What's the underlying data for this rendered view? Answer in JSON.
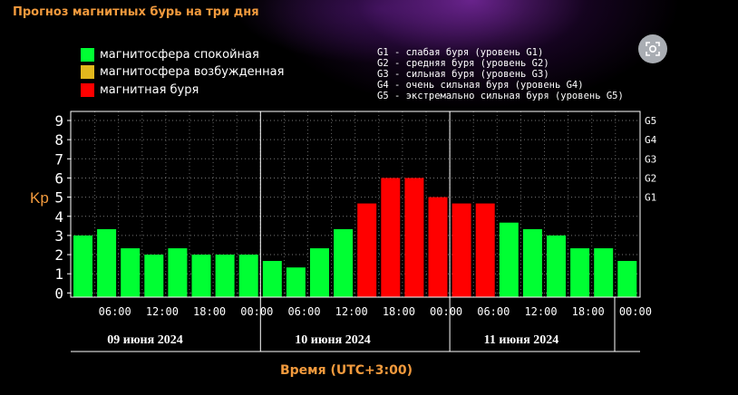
{
  "header": {
    "title": "Прогноз магнитных бурь на три дня"
  },
  "legend": [
    {
      "label": "магнитосфера спокойная",
      "color": "#00ff33"
    },
    {
      "label": "магнитосфера возбужденная",
      "color": "#e2b81d"
    },
    {
      "label": "магнитная буря",
      "color": "#ff0000"
    }
  ],
  "storm_levels": [
    "G1 - слабая буря (уровень G1)",
    "G2 - средняя буря (уровень G2)",
    "G3 - сильная буря (уровень G3)",
    "G4 - очень сильная буря (уровень G4)",
    "G5 - экстремально сильная буря (уровень G5)"
  ],
  "zoom_icon": "zoom-icon",
  "chart_data": {
    "type": "bar",
    "ylabel": "Kp",
    "ylim": [
      0,
      9
    ],
    "yticks": [
      "0",
      "1",
      "2",
      "3",
      "4",
      "5",
      "6",
      "7",
      "8",
      "9"
    ],
    "right_ticks": [
      {
        "label": "G1",
        "value": 5
      },
      {
        "label": "G2",
        "value": 6
      },
      {
        "label": "G3",
        "value": 7
      },
      {
        "label": "G4",
        "value": 8
      },
      {
        "label": "G5",
        "value": 9
      }
    ],
    "xticks": [
      "06:00",
      "12:00",
      "18:00",
      "00:00",
      "06:00",
      "12:00",
      "18:00",
      "00:00",
      "06:00",
      "12:00",
      "18:00",
      "00:00"
    ],
    "days": [
      "09 июня 2024",
      "10 июня 2024",
      "11 июня 2024"
    ],
    "values": [
      3.0,
      3.33,
      2.33,
      2.0,
      2.33,
      2.0,
      2.0,
      2.0,
      1.67,
      1.33,
      2.33,
      3.33,
      4.67,
      6.0,
      6.0,
      5.0,
      4.67,
      4.67,
      3.67,
      3.33,
      3.0,
      2.33,
      2.33,
      1.67
    ],
    "colors": [
      "#00ff33",
      "#00ff33",
      "#00ff33",
      "#00ff33",
      "#00ff33",
      "#00ff33",
      "#00ff33",
      "#00ff33",
      "#00ff33",
      "#00ff33",
      "#00ff33",
      "#00ff33",
      "#ff0000",
      "#ff0000",
      "#ff0000",
      "#ff0000",
      "#ff0000",
      "#ff0000",
      "#00ff33",
      "#00ff33",
      "#00ff33",
      "#00ff33",
      "#00ff33",
      "#00ff33"
    ],
    "xlabel": "Время (UTC+3:00)",
    "grid": true
  }
}
